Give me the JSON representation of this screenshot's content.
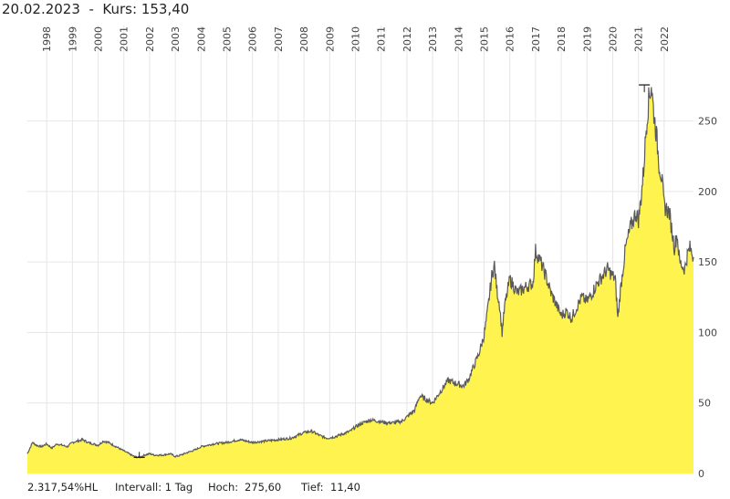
{
  "header": {
    "date": "20.02.2023",
    "separator": "-",
    "price_label": "Kurs:",
    "price": "153,40"
  },
  "footer": {
    "performance": "2.317,54%HL",
    "interval": "Intervall: 1 Tag",
    "high_label": "Hoch:",
    "high_value": "275,60",
    "low_label": "Tief:",
    "low_value": "11,40"
  },
  "colors": {
    "fill": "#fff44f",
    "line": "#5a5a5a",
    "grid": "#e6e6e6",
    "marker": "#222222"
  },
  "chart_data": {
    "type": "area",
    "title": "",
    "xlabel": "",
    "ylabel": "",
    "ylim": [
      0,
      275
    ],
    "xlim": [
      1997.25,
      2023.14
    ],
    "grid": true,
    "x_ticks": [
      "1998",
      "1999",
      "2000",
      "2001",
      "2002",
      "2003",
      "2004",
      "2005",
      "2006",
      "2007",
      "2008",
      "2009",
      "2010",
      "2011",
      "2012",
      "2013",
      "2014",
      "2015",
      "2016",
      "2017",
      "2018",
      "2019",
      "2020",
      "2021",
      "2022"
    ],
    "y_ticks": [
      "0",
      "50",
      "100",
      "150",
      "200",
      "250"
    ],
    "high_marker": {
      "x": 2021.23,
      "y": 275.6
    },
    "low_marker": {
      "x": 2001.6,
      "y": 11.4
    },
    "series": [
      {
        "x": [
          1997.25,
          1997.45,
          1997.6,
          1997.8,
          1998.0,
          1998.2,
          1998.4,
          1998.6,
          1998.8,
          1999.0,
          1999.2,
          1999.4,
          1999.6,
          1999.8,
          2000.0,
          2000.2,
          2000.4,
          2000.6,
          2000.8,
          2001.0,
          2001.2,
          2001.4,
          2001.6,
          2001.8,
          2002.0,
          2002.2,
          2002.5,
          2002.8,
          2003.0,
          2003.2,
          2003.5,
          2003.8,
          2004.0,
          2004.5,
          2005.0,
          2005.5,
          2006.0,
          2006.5,
          2007.0,
          2007.5,
          2008.0,
          2008.3,
          2008.6,
          2008.9,
          2009.2,
          2009.5,
          2009.8,
          2010.0,
          2010.3,
          2010.6,
          2010.9,
          2011.2,
          2011.5,
          2011.8,
          2012.0,
          2012.3,
          2012.5,
          2012.8,
          2013.0,
          2013.3,
          2013.6,
          2013.9,
          2014.2,
          2014.4,
          2014.6,
          2014.8,
          2015.0,
          2015.1,
          2015.2,
          2015.3,
          2015.4,
          2015.5,
          2015.6,
          2015.7,
          2015.8,
          2016.0,
          2016.3,
          2016.6,
          2016.9,
          2017.0,
          2017.2,
          2017.4,
          2017.6,
          2017.8,
          2018.0,
          2018.2,
          2018.4,
          2018.6,
          2018.8,
          2019.0,
          2019.2,
          2019.4,
          2019.6,
          2019.8,
          2020.0,
          2020.1,
          2020.2,
          2020.3,
          2020.5,
          2020.7,
          2020.9,
          2021.0,
          2021.1,
          2021.2,
          2021.3,
          2021.4,
          2021.5,
          2021.6,
          2021.7,
          2021.8,
          2021.9,
          2022.0,
          2022.2,
          2022.4,
          2022.5,
          2022.6,
          2022.8,
          2022.9,
          2023.0,
          2023.14
        ],
        "values": [
          14,
          22,
          20,
          19,
          21,
          18,
          21,
          20,
          19,
          22,
          23,
          24,
          22,
          21,
          20,
          23,
          22,
          20,
          18,
          16,
          14,
          12,
          11.4,
          13,
          14,
          13,
          13,
          14,
          12,
          13,
          15,
          17,
          19,
          21,
          22,
          24,
          22,
          23,
          24,
          25,
          29,
          30,
          27,
          25,
          26,
          28,
          30,
          33,
          36,
          38,
          37,
          36,
          36,
          37,
          40,
          45,
          55,
          52,
          50,
          58,
          66,
          64,
          62,
          67,
          76,
          85,
          98,
          110,
          125,
          140,
          148,
          130,
          120,
          100,
          118,
          138,
          128,
          132,
          135,
          158,
          150,
          140,
          128,
          120,
          112,
          115,
          110,
          118,
          125,
          122,
          128,
          135,
          140,
          145,
          140,
          138,
          110,
          130,
          160,
          175,
          185,
          180,
          195,
          215,
          245,
          265,
          275.6,
          255,
          240,
          220,
          210,
          190,
          185,
          160,
          170,
          150,
          145,
          155,
          160,
          153.4
        ]
      }
    ]
  }
}
